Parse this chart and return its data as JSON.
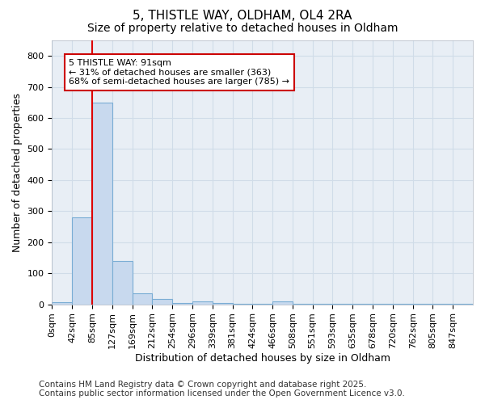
{
  "title1": "5, THISTLE WAY, OLDHAM, OL4 2RA",
  "title2": "Size of property relative to detached houses in Oldham",
  "xlabel": "Distribution of detached houses by size in Oldham",
  "ylabel": "Number of detached properties",
  "bin_labels": [
    "0sqm",
    "42sqm",
    "85sqm",
    "127sqm",
    "169sqm",
    "212sqm",
    "254sqm",
    "296sqm",
    "339sqm",
    "381sqm",
    "424sqm",
    "466sqm",
    "508sqm",
    "551sqm",
    "593sqm",
    "635sqm",
    "678sqm",
    "720sqm",
    "762sqm",
    "805sqm",
    "847sqm"
  ],
  "bar_values": [
    8,
    280,
    650,
    140,
    35,
    18,
    5,
    10,
    3,
    2,
    1,
    10,
    1,
    1,
    1,
    1,
    1,
    1,
    1,
    1,
    2
  ],
  "bar_color": "#c8d9ee",
  "bar_edge_color": "#7aadd4",
  "red_line_color": "#dd0000",
  "annotation_text": "5 THISTLE WAY: 91sqm\n← 31% of detached houses are smaller (363)\n68% of semi-detached houses are larger (785) →",
  "annotation_box_color": "#ffffff",
  "annotation_box_edge": "#cc0000",
  "ylim": [
    0,
    850
  ],
  "yticks": [
    0,
    100,
    200,
    300,
    400,
    500,
    600,
    700,
    800
  ],
  "footer": "Contains HM Land Registry data © Crown copyright and database right 2025.\nContains public sector information licensed under the Open Government Licence v3.0.",
  "bg_color": "#e8eef5",
  "grid_color": "#d0dce8",
  "title1_fontsize": 11,
  "title2_fontsize": 10,
  "xlabel_fontsize": 9,
  "ylabel_fontsize": 9,
  "tick_fontsize": 8,
  "footer_fontsize": 7.5,
  "red_line_x": 2
}
